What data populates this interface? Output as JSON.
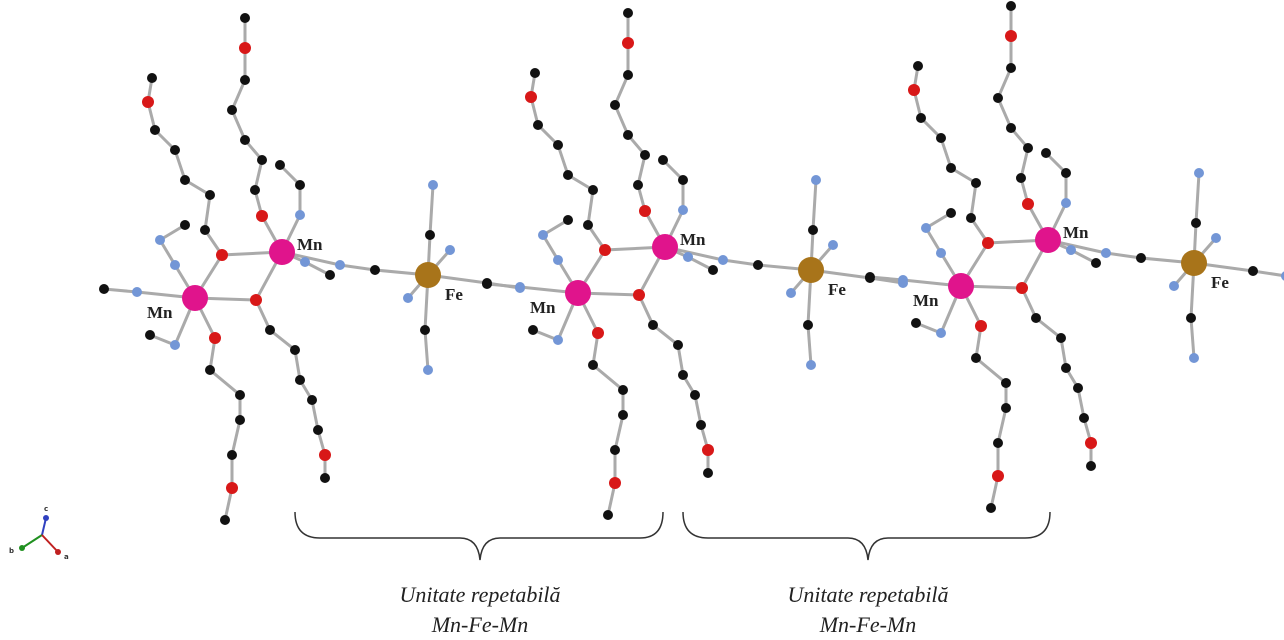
{
  "units": [
    {
      "mn_labels": [
        "Mn",
        "Mn"
      ],
      "fe_label": "Fe"
    },
    {
      "mn_labels": [
        "Mn",
        "Mn"
      ],
      "fe_label": "Fe"
    },
    {
      "mn_labels": [
        "Mn",
        "Mn"
      ],
      "fe_label": "Fe"
    }
  ],
  "axis_labels": [
    "c",
    "b",
    "a"
  ],
  "repeat_units": [
    {
      "line1": "Unitate repetabilă",
      "line2": "Mn-Fe-Mn"
    },
    {
      "line1": "Unitate repetabilă",
      "line2": "Mn-Fe-Mn"
    }
  ]
}
